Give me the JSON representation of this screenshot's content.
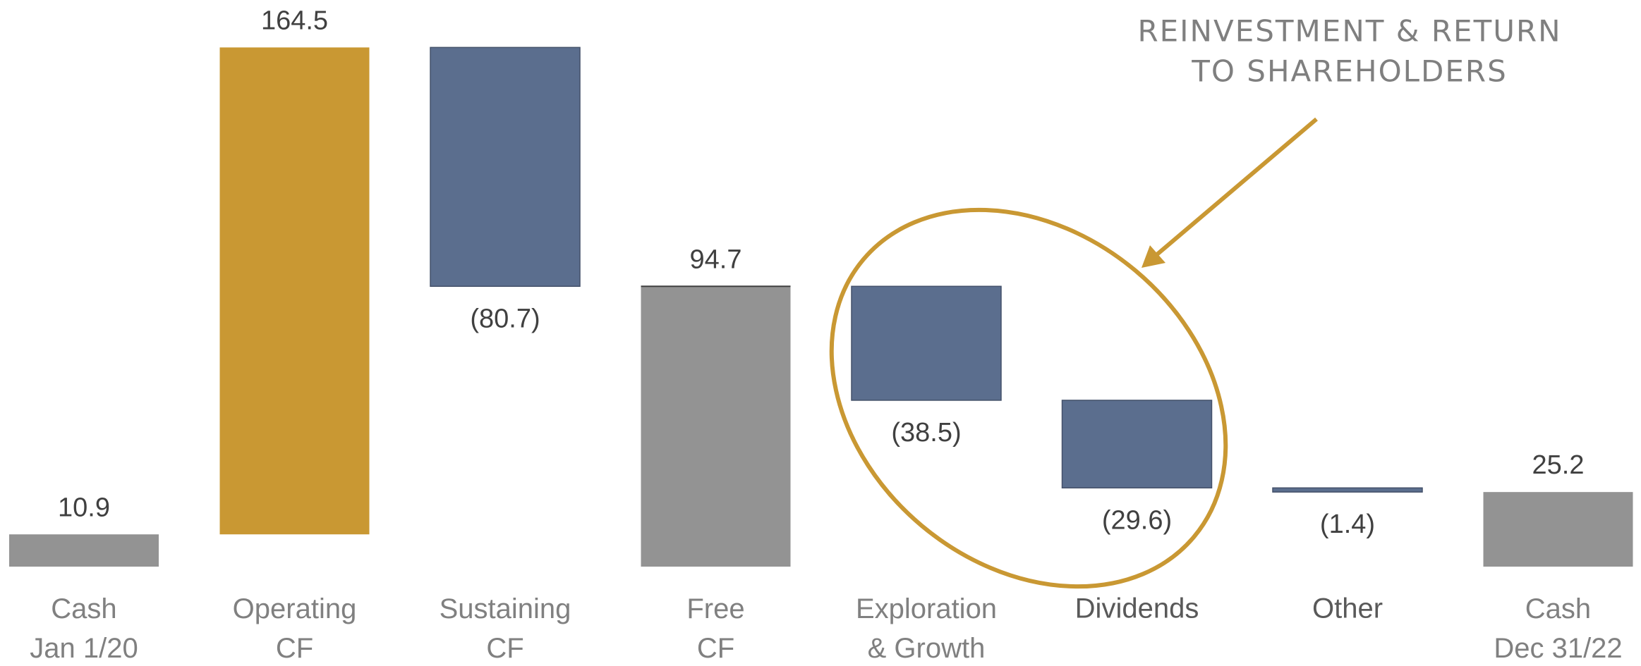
{
  "chart_data": {
    "type": "waterfall",
    "categories": [
      "Cash\nJan 1/20",
      "Operating\nCF",
      "Sustaining\nCF",
      "Free\nCF",
      "Exploration\n& Growth",
      "Dividends",
      "Other",
      "Cash\nDec 31/22"
    ],
    "values": [
      10.9,
      164.5,
      -80.7,
      94.7,
      -38.5,
      -29.6,
      -1.4,
      25.2
    ],
    "value_labels": [
      "10.9",
      "164.5",
      "(80.7)",
      "94.7",
      "(38.5)",
      "(29.6)",
      "(1.4)",
      "25.2"
    ],
    "measure": [
      "absolute",
      "relative",
      "relative",
      "absolute",
      "relative",
      "relative",
      "relative",
      "absolute"
    ],
    "colors": [
      "#939393",
      "#c99833",
      "#5b6e8e",
      "#939393",
      "#5b6e8e",
      "#5b6e8e",
      "#5b6e8e",
      "#939393"
    ],
    "annotation": [
      "REINVESTMENT & RETURN",
      "TO SHAREHOLDERS"
    ]
  }
}
